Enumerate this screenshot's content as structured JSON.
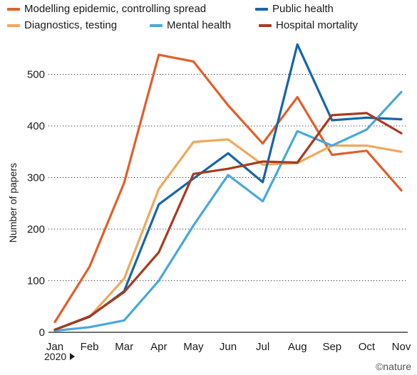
{
  "chart_data": {
    "type": "line",
    "title": "",
    "xlabel": "",
    "ylabel": "Number of papers",
    "categories": [
      "Jan",
      "Feb",
      "Mar",
      "Apr",
      "May",
      "Jun",
      "Jul",
      "Aug",
      "Sep",
      "Oct",
      "Nov"
    ],
    "year_label": "2020",
    "ylim": [
      0,
      560
    ],
    "yticks": [
      0,
      100,
      200,
      300,
      400,
      500
    ],
    "grid": "horizontal dotted",
    "legend_position": "top",
    "series": [
      {
        "name": "Modelling epidemic, controlling spread",
        "color": "#e05f2c",
        "values": [
          20,
          127,
          290,
          538,
          525,
          440,
          366,
          456,
          344,
          352,
          275
        ]
      },
      {
        "name": "Diagnostics, testing",
        "color": "#f0a95a",
        "values": [
          5,
          30,
          104,
          278,
          369,
          374,
          325,
          328,
          362,
          362,
          350
        ]
      },
      {
        "name": "Public health",
        "color": "#1666a8",
        "values": [
          5,
          30,
          80,
          248,
          298,
          347,
          291,
          558,
          411,
          416,
          413
        ]
      },
      {
        "name": "Mental health",
        "color": "#46a9dc",
        "values": [
          3,
          10,
          23,
          100,
          207,
          305,
          254,
          390,
          362,
          393,
          466
        ]
      },
      {
        "name": "Hospital mortality",
        "color": "#a93a1e",
        "values": [
          5,
          31,
          78,
          155,
          307,
          317,
          331,
          329,
          421,
          425,
          386
        ]
      }
    ]
  },
  "credit": "©nature"
}
